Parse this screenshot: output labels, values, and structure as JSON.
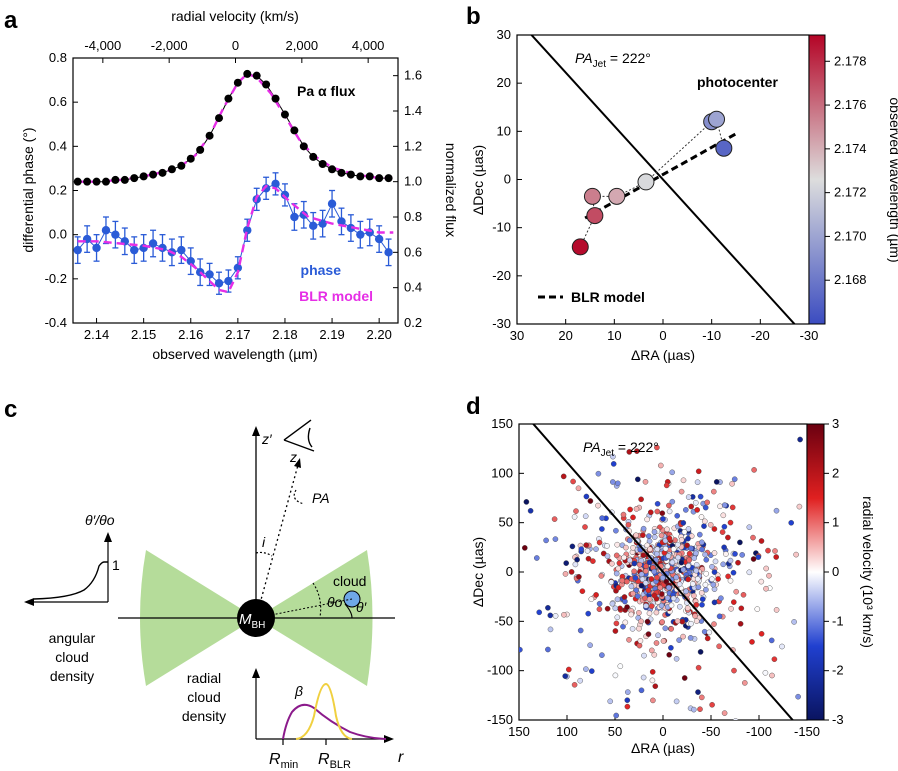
{
  "panels": {
    "a": {
      "letter": "a"
    },
    "b": {
      "letter": "b"
    },
    "c": {
      "letter": "c"
    },
    "d": {
      "letter": "d"
    }
  },
  "chart_data": [
    {
      "panel": "a",
      "type": "line",
      "xlabel": "observed wavelength (µm)",
      "x2label": "radial velocity (km/s)",
      "ylabel": "differential phase (°)",
      "y2label": "normalized flux",
      "xlim": [
        2.135,
        2.204
      ],
      "ylim": [
        -0.4,
        0.8
      ],
      "y2lim": [
        0.2,
        1.7
      ],
      "x2lim": [
        -4900,
        4900
      ],
      "xticks": [
        "2.14",
        "2.15",
        "2.16",
        "2.17",
        "2.18",
        "2.19",
        "2.20"
      ],
      "x2ticks": [
        "-4,000",
        "-2,000",
        "0",
        "2,000",
        "4,000"
      ],
      "yticks": [
        "-0.4",
        "-0.2",
        "0.0",
        "0.2",
        "0.4",
        "0.6",
        "0.8"
      ],
      "y2ticks": [
        "0.2",
        "0.4",
        "0.6",
        "0.8",
        "1.0",
        "1.2",
        "1.4",
        "1.6"
      ],
      "annotations": {
        "flux_label": "Pa α  flux",
        "phase_label": "phase",
        "model_label": "BLR model"
      },
      "colors": {
        "flux": "#000000",
        "phase": "#2a5bd7",
        "model": "#e62ee6"
      },
      "flux": {
        "x": [
          2.136,
          2.138,
          2.14,
          2.142,
          2.144,
          2.146,
          2.148,
          2.15,
          2.152,
          2.154,
          2.156,
          2.158,
          2.16,
          2.162,
          2.164,
          2.166,
          2.168,
          2.17,
          2.172,
          2.174,
          2.176,
          2.178,
          2.18,
          2.182,
          2.184,
          2.186,
          2.188,
          2.19,
          2.192,
          2.194,
          2.196,
          2.198,
          2.2,
          2.202
        ],
        "y": [
          1.0,
          1.0,
          1.0,
          1.0,
          1.01,
          1.01,
          1.02,
          1.03,
          1.04,
          1.05,
          1.07,
          1.09,
          1.13,
          1.18,
          1.26,
          1.36,
          1.47,
          1.56,
          1.61,
          1.6,
          1.55,
          1.47,
          1.38,
          1.29,
          1.2,
          1.14,
          1.1,
          1.07,
          1.05,
          1.04,
          1.03,
          1.03,
          1.02,
          1.02
        ]
      },
      "phase": {
        "x": [
          2.136,
          2.138,
          2.14,
          2.142,
          2.144,
          2.146,
          2.148,
          2.15,
          2.152,
          2.154,
          2.156,
          2.158,
          2.16,
          2.162,
          2.164,
          2.166,
          2.168,
          2.17,
          2.172,
          2.174,
          2.176,
          2.178,
          2.18,
          2.182,
          2.184,
          2.186,
          2.188,
          2.19,
          2.192,
          2.194,
          2.196,
          2.198,
          2.2,
          2.202
        ],
        "y": [
          -0.07,
          -0.02,
          -0.06,
          0.02,
          0.0,
          -0.03,
          -0.07,
          -0.06,
          -0.04,
          -0.06,
          -0.08,
          -0.07,
          -0.12,
          -0.17,
          -0.18,
          -0.22,
          -0.21,
          -0.15,
          0.02,
          0.16,
          0.21,
          0.23,
          0.18,
          0.08,
          0.09,
          0.04,
          0.05,
          0.14,
          0.06,
          0.03,
          0.0,
          0.01,
          -0.02,
          -0.08
        ],
        "err": [
          0.06,
          0.06,
          0.06,
          0.06,
          0.06,
          0.06,
          0.06,
          0.06,
          0.06,
          0.06,
          0.06,
          0.06,
          0.06,
          0.06,
          0.05,
          0.05,
          0.05,
          0.05,
          0.05,
          0.05,
          0.05,
          0.05,
          0.05,
          0.06,
          0.06,
          0.06,
          0.06,
          0.06,
          0.06,
          0.06,
          0.06,
          0.06,
          0.06,
          0.06
        ]
      },
      "model_flux": {
        "x": [
          2.136,
          2.14,
          2.145,
          2.15,
          2.155,
          2.158,
          2.161,
          2.164,
          2.167,
          2.17,
          2.172,
          2.174,
          2.177,
          2.18,
          2.183,
          2.186,
          2.19,
          2.195,
          2.2,
          2.203
        ],
        "y": [
          1.0,
          1.0,
          1.01,
          1.03,
          1.06,
          1.09,
          1.15,
          1.26,
          1.42,
          1.56,
          1.61,
          1.59,
          1.5,
          1.37,
          1.24,
          1.15,
          1.08,
          1.04,
          1.02,
          1.02
        ]
      },
      "model_phase": {
        "x": [
          2.136,
          2.14,
          2.145,
          2.15,
          2.155,
          2.158,
          2.161,
          2.164,
          2.166,
          2.168,
          2.17,
          2.172,
          2.174,
          2.176,
          2.178,
          2.181,
          2.185,
          2.19,
          2.195,
          2.2,
          2.203
        ],
        "y": [
          -0.03,
          -0.03,
          -0.04,
          -0.05,
          -0.07,
          -0.1,
          -0.15,
          -0.21,
          -0.25,
          -0.26,
          -0.17,
          0.03,
          0.17,
          0.22,
          0.21,
          0.15,
          0.08,
          0.05,
          0.03,
          0.01,
          0.01
        ]
      }
    },
    {
      "panel": "b",
      "type": "scatter",
      "xlabel": "ΔRA (µas)",
      "ylabel": "ΔDec (µas)",
      "colorbar_label": "observed wavelength (µm)",
      "xlim": [
        30,
        -30
      ],
      "ylim": [
        -30,
        30
      ],
      "xticks": [
        "30",
        "20",
        "10",
        "0",
        "-10",
        "-20",
        "-30"
      ],
      "yticks": [
        "30",
        "20",
        "10",
        "0",
        "-10",
        "-20",
        "-30"
      ],
      "colorbar_lim": [
        2.166,
        2.1792
      ],
      "colorbar_ticks": [
        "2.168",
        "2.170",
        "2.172",
        "2.174",
        "2.176",
        "2.178"
      ],
      "pa_jet_label": "PA",
      "pa_jet_sub": "Jet",
      "pa_jet_value": " = 222°",
      "pa_jet_deg": 222,
      "annotations": {
        "photocenter": "photocenter",
        "model_legend": "BLR model"
      },
      "photocenters": [
        {
          "ra": 17,
          "dec": -14,
          "wl": 2.179
        },
        {
          "ra": 14,
          "dec": -7.5,
          "wl": 2.177
        },
        {
          "ra": 14.5,
          "dec": -3.5,
          "wl": 2.1755
        },
        {
          "ra": 9.5,
          "dec": -3.5,
          "wl": 2.1742
        },
        {
          "ra": 3.5,
          "dec": -0.5,
          "wl": 2.1724
        },
        {
          "ra": -10,
          "dec": 12,
          "wl": 2.169
        },
        {
          "ra": -11,
          "dec": 12.5,
          "wl": 2.17
        },
        {
          "ra": -12.5,
          "dec": 6.5,
          "wl": 2.1672
        }
      ],
      "model_line": {
        "ra": [
          16,
          -15
        ],
        "dec": [
          -8,
          9.5
        ]
      }
    },
    {
      "panel": "d",
      "type": "scatter",
      "xlabel": "ΔRA (µas)",
      "ylabel": "ΔDec (µas)",
      "colorbar_label": "radial velocity (10³ km/s)",
      "xlim": [
        150,
        -150
      ],
      "ylim": [
        -150,
        150
      ],
      "xticks": [
        "150",
        "100",
        "50",
        "0",
        "-50",
        "-100",
        "-150"
      ],
      "yticks": [
        "150",
        "100",
        "50",
        "0",
        "-50",
        "-100",
        "-150"
      ],
      "colorbar_lim": [
        -3,
        3
      ],
      "colorbar_ticks": [
        "3",
        "2",
        "1",
        "0",
        "-1",
        "-2",
        "-3"
      ],
      "pa_jet_label": "PA",
      "pa_jet_sub": "Jet",
      "pa_jet_value": " = 222°",
      "pa_jet_deg": 222,
      "n_clouds": 900
    }
  ],
  "diagram_c": {
    "labels": {
      "zprime": "z′",
      "z": "z",
      "pa": "PA",
      "i": "i",
      "cloud": "cloud",
      "theta_o": "θo",
      "theta_prime": "θ′",
      "mbh": "M",
      "mbh_sub": "BH",
      "ratio": "θ′/θo",
      "one": "1",
      "angular_density": [
        "angular",
        "cloud",
        "density"
      ],
      "radial_density": [
        "radial",
        "cloud",
        "density"
      ],
      "beta": "β",
      "rmin": "R",
      "rmin_sub": "min",
      "rblr": "R",
      "rblr_sub": "BLR",
      "r": "r"
    },
    "colors": {
      "wedge": "#b5dc9a",
      "profile_beta": "#8b1a8b",
      "profile_yellow": "#f0d040"
    }
  }
}
